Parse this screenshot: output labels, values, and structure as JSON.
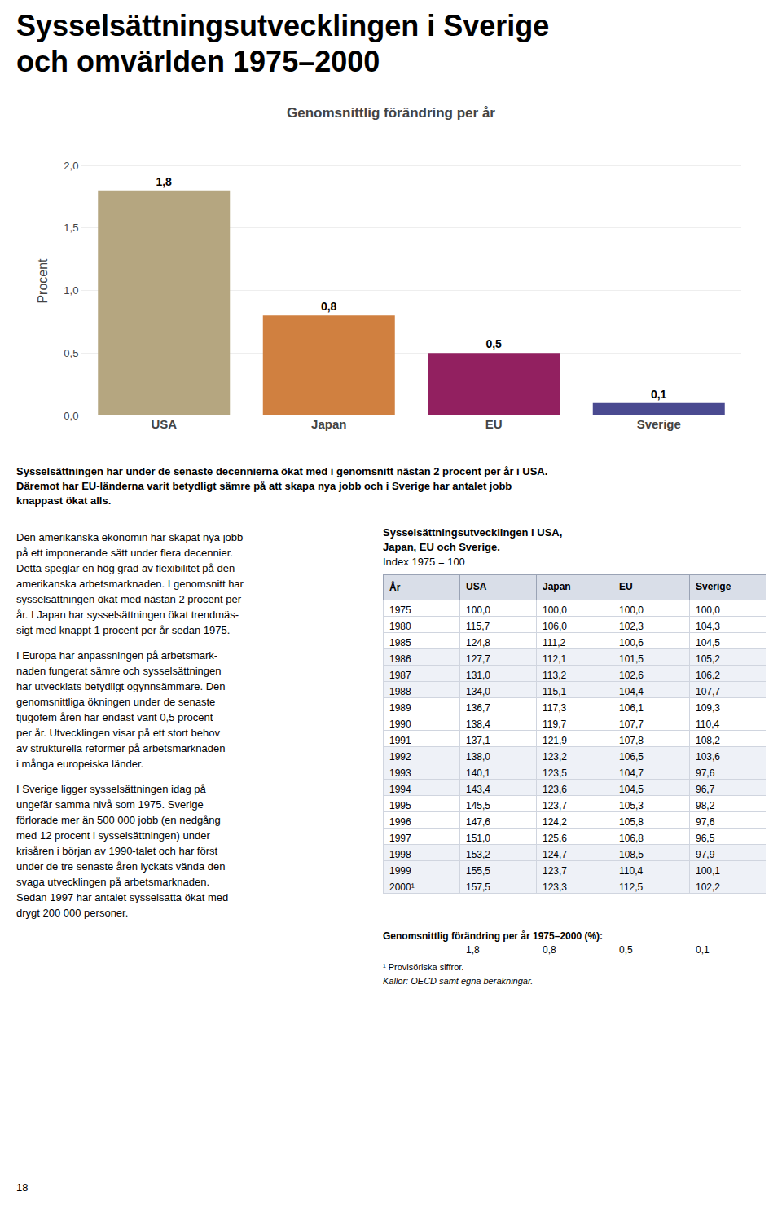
{
  "title": [
    "Sysselsättningsutvecklingen i Sverige",
    "och omvärlden 1975–2000"
  ],
  "chart_data": [
    {
      "type": "bar",
      "title": "Genomsnittlig förändring per år",
      "ylabel": "Procent",
      "categories": [
        "USA",
        "Japan",
        "EU",
        "Sverige"
      ],
      "values": [
        1.8,
        0.8,
        0.5,
        0.1
      ],
      "value_labels": [
        "1,8",
        "0,8",
        "0,5",
        "0,1"
      ],
      "colors": [
        "#b5a680",
        "#d08040",
        "#922060",
        "#4a4a90"
      ],
      "ylim": [
        0.0,
        2.15
      ],
      "yticks": [
        {
          "value": 0.0,
          "label": "0,0"
        },
        {
          "value": 0.5,
          "label": "0,5"
        },
        {
          "value": 1.0,
          "label": "1,0"
        },
        {
          "value": 1.5,
          "label": "1,5"
        },
        {
          "value": 2.0,
          "label": "2,0"
        }
      ],
      "grid": true,
      "data_labels": true
    },
    {
      "type": "table",
      "title": [
        "Sysselsättningsutvecklingen i USA,",
        "Japan, EU och Sverige."
      ],
      "subtitle": "Index 1975 = 100",
      "columns": [
        "År",
        "USA",
        "Japan",
        "EU",
        "Sverige"
      ],
      "row_groups": [
        [
          [
            "1975",
            "100,0",
            "100,0",
            "100,0",
            "100,0"
          ],
          [
            "1980",
            "115,7",
            "106,0",
            "102,3",
            "104,3"
          ],
          [
            "1985",
            "124,8",
            "111,2",
            "100,6",
            "104,5"
          ]
        ],
        [
          [
            "1986",
            "127,7",
            "112,1",
            "101,5",
            "105,2"
          ],
          [
            "1987",
            "131,0",
            "113,2",
            "102,6",
            "106,2"
          ],
          [
            "1988",
            "134,0",
            "115,1",
            "104,4",
            "107,7"
          ]
        ],
        [
          [
            "1989",
            "136,7",
            "117,3",
            "106,1",
            "109,3"
          ],
          [
            "1990",
            "138,4",
            "119,7",
            "107,7",
            "110,4"
          ],
          [
            "1991",
            "137,1",
            "121,9",
            "107,8",
            "108,2"
          ]
        ],
        [
          [
            "1992",
            "138,0",
            "123,2",
            "106,5",
            "103,6"
          ],
          [
            "1993",
            "140,1",
            "123,5",
            "104,7",
            "97,6"
          ],
          [
            "1994",
            "143,4",
            "123,6",
            "104,5",
            "96,7"
          ]
        ],
        [
          [
            "1995",
            "145,5",
            "123,7",
            "105,3",
            "98,2"
          ],
          [
            "1996",
            "147,6",
            "124,2",
            "105,8",
            "97,6"
          ],
          [
            "1997",
            "151,0",
            "125,6",
            "106,8",
            "96,5"
          ]
        ],
        [
          [
            "1998",
            "153,2",
            "124,7",
            "108,5",
            "97,9"
          ],
          [
            "1999",
            "155,5",
            "123,7",
            "110,4",
            "100,1"
          ],
          [
            "2000¹",
            "157,5",
            "123,3",
            "112,5",
            "102,2"
          ]
        ]
      ],
      "footer_label": "Genomsnittlig förändring per år 1975–2000 (%):",
      "footer_values": [
        "1,8",
        "0,8",
        "0,5",
        "0,1"
      ],
      "footnote": "¹ Provisöriska siffror.",
      "source": "Källor: OECD samt egna beräkningar."
    }
  ],
  "summary": [
    "Sysselsättningen har under de senaste decennierna ökat med i genomsnitt nästan 2 procent per år i USA.",
    "Däremot har EU-länderna varit betydligt sämre på att skapa nya jobb och i Sverige har antalet jobb",
    "knappast ökat alls."
  ],
  "paragraphs": [
    [
      "Den amerikanska ekonomin har skapat nya jobb",
      "på ett imponerande sätt under flera decennier.",
      "Detta speglar en hög grad av flexibilitet på den",
      "amerikanska arbetsmarknaden. I genomsnitt har",
      "sysselsättningen ökat med nästan 2 procent per",
      "år. I Japan har sysselsättningen ökat trendmäs-",
      "sigt med knappt 1 procent per år sedan 1975."
    ],
    [
      "I Europa har anpassningen på arbetsmark-",
      "naden fungerat sämre och sysselsättningen",
      "har utvecklats betydligt ogynnsämmare. Den",
      "genomsnittliga ökningen under de senaste",
      "tjugofem åren har endast varit 0,5 procent",
      "per år. Utvecklingen visar på ett stort behov",
      "av strukturella reformer på arbetsmarknaden",
      "i många europeiska länder."
    ],
    [
      "I Sverige ligger sysselsättningen idag på",
      "ungefär samma nivå som 1975. Sverige",
      "förlorade mer än 500 000 jobb (en nedgång",
      "med 12 procent i sysselsättningen) under",
      "krisåren i början av 1990-talet och har först",
      "under de tre senaste åren lyckats vända den",
      "svaga utvecklingen på arbetsmarknaden.",
      "Sedan 1997 har antalet sysselsatta ökat med",
      "drygt 200 000 personer."
    ]
  ],
  "page_number": "18"
}
